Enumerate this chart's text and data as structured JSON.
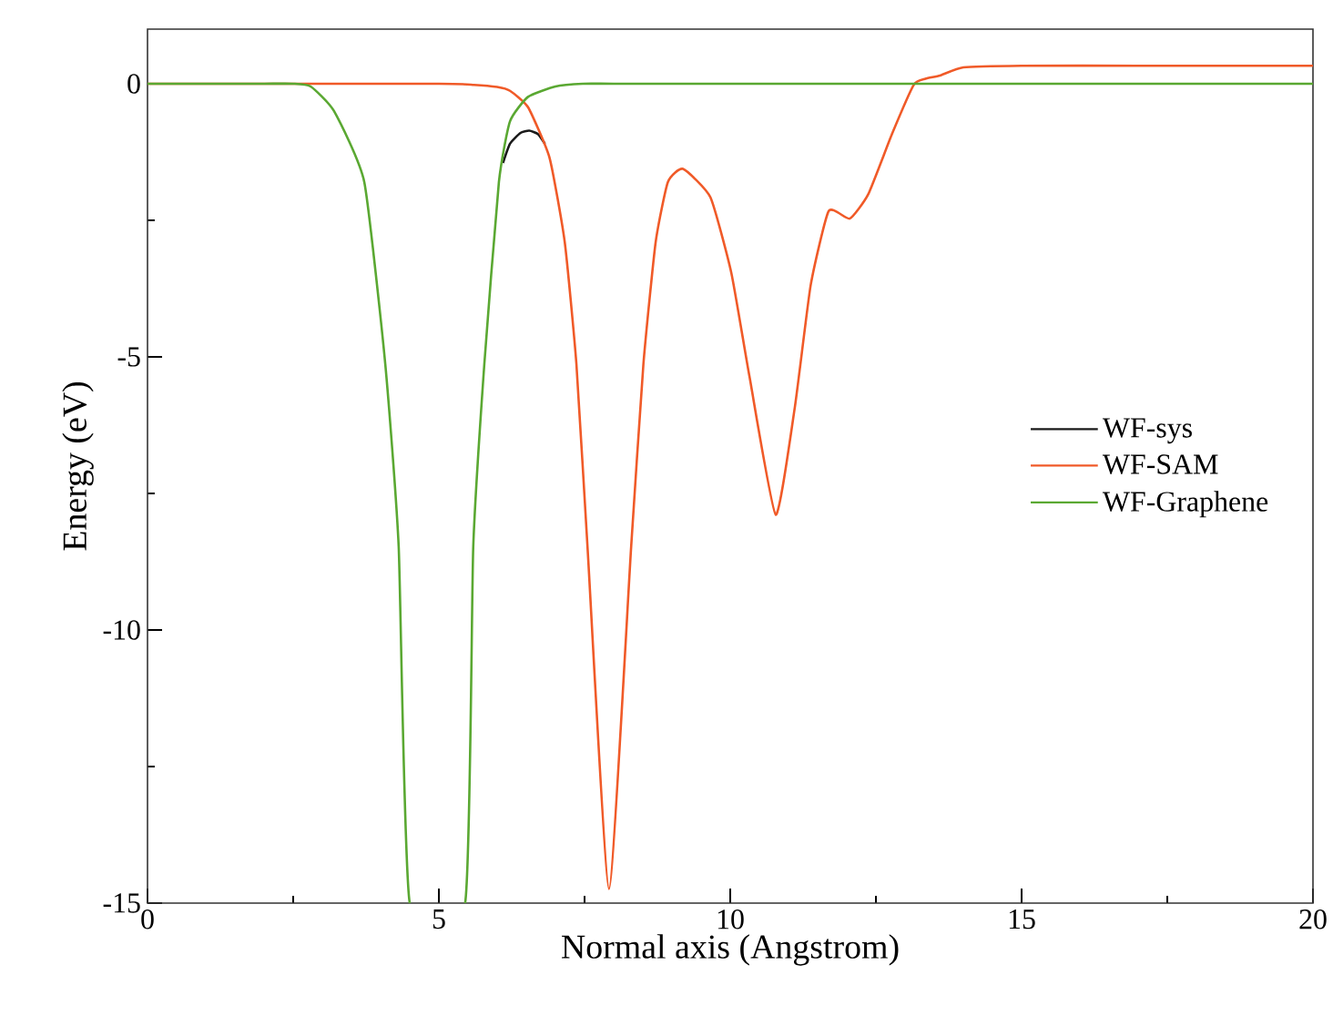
{
  "chart_data": {
    "type": "line",
    "xlabel": "Normal axis (Angstrom)",
    "ylabel": "Energy (eV)",
    "xlim": [
      0,
      20
    ],
    "ylim": [
      -15,
      1
    ],
    "xticks": [
      0,
      5,
      10,
      15,
      20
    ],
    "yticks": [
      -15,
      -10,
      -5,
      0
    ],
    "legend": "right",
    "grid": false,
    "series": [
      {
        "name": "WF-sys",
        "color": "#1a1a1a",
        "x": [
          6.1,
          6.22,
          6.4,
          6.55,
          6.7,
          6.82
        ],
        "values": [
          -1.45,
          -1.1,
          -0.9,
          -0.86,
          -0.92,
          -1.1
        ]
      },
      {
        "name": "WF-SAM",
        "color": "#f05a28",
        "x": [
          0,
          5,
          5.6,
          6.0,
          6.22,
          6.53,
          6.9,
          7.16,
          7.36,
          7.55,
          7.92,
          8.3,
          8.51,
          8.72,
          8.93,
          9.19,
          9.66,
          10.02,
          10.33,
          10.78,
          11.11,
          11.38,
          11.69,
          12.05,
          12.37,
          12.78,
          13.15,
          13.35,
          13.6,
          14,
          15,
          17,
          20
        ],
        "values": [
          0,
          0,
          -0.02,
          -0.06,
          -0.13,
          -0.43,
          -1.36,
          -2.9,
          -5.13,
          -8.47,
          -14.74,
          -8.47,
          -5.13,
          -2.9,
          -1.8,
          -1.56,
          -2.08,
          -3.47,
          -5.36,
          -7.89,
          -5.91,
          -3.69,
          -2.33,
          -2.47,
          -2.02,
          -0.91,
          -0.02,
          0.09,
          0.15,
          0.3,
          0.33,
          0.33,
          0.33
        ]
      },
      {
        "name": "WF-Graphene",
        "color": "#5aa832",
        "x": [
          0,
          1,
          2,
          2.5,
          2.8,
          3.2,
          3.72,
          4.08,
          4.31,
          4.5,
          5.45,
          5.59,
          5.78,
          6.03,
          6.22,
          6.53,
          7.0,
          7.47,
          8,
          10,
          15,
          20
        ],
        "values": [
          0,
          0,
          0,
          0,
          -0.05,
          -0.5,
          -1.8,
          -5.13,
          -8.47,
          -15,
          -15,
          -8.47,
          -5.13,
          -1.8,
          -0.69,
          -0.24,
          -0.05,
          0,
          0,
          0,
          0,
          0
        ]
      }
    ]
  }
}
